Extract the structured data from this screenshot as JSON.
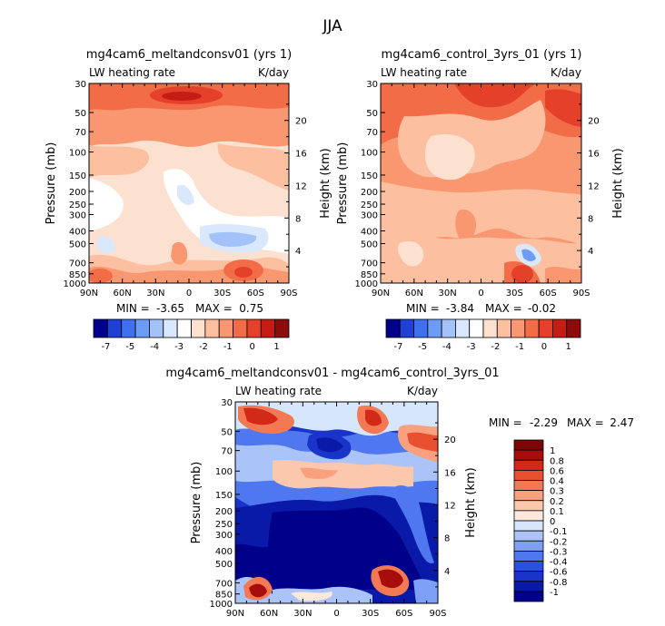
{
  "figure_title": "JJA",
  "colors": {
    "panel_scale": [
      "#00008a",
      "#1f3fd6",
      "#3f70f0",
      "#6d9cf7",
      "#a3c2fa",
      "#d9e8fc",
      "#ffffff",
      "#fde1d0",
      "#fcbfa0",
      "#f99770",
      "#f26c48",
      "#e5402a",
      "#c51d15",
      "#8c0b0b"
    ],
    "diff_scale": [
      "#00008a",
      "#0a1aa8",
      "#1a33c8",
      "#2b4fe0",
      "#4f78f0",
      "#7da0f6",
      "#aac4fa",
      "#d6e6fd",
      "#fde9dc",
      "#fcc8ad",
      "#f9a07e",
      "#f27954",
      "#e9502f",
      "#d32a18",
      "#a80d0d",
      "#7a0606"
    ]
  },
  "chart_data": [
    {
      "type": "heatmap",
      "title": "mg4cam6_meltandconsv01 (yrs 1)",
      "subtitle_left": "LW heating rate",
      "subtitle_right": "K/day",
      "ylabel": "Pressure (mb)",
      "ylabel_right": "Height (km)",
      "x_ticks": [
        "90N",
        "60N",
        "30N",
        "0",
        "30S",
        "60S",
        "90S"
      ],
      "y_ticks": [
        "30",
        "50",
        "70",
        "100",
        "150",
        "200",
        "250",
        "300",
        "400",
        "500",
        "700",
        "850",
        "1000"
      ],
      "height_ticks": [
        "20",
        "16",
        "12",
        "8",
        "4"
      ],
      "min_label": "MIN =",
      "min_value": "-3.65",
      "max_label": "MAX =",
      "max_value": "0.75",
      "colorbar_labels": [
        "-7",
        "-5",
        "-4",
        "-3",
        "-2",
        "-1",
        "0",
        "1"
      ]
    },
    {
      "type": "heatmap",
      "title": "mg4cam6_control_3yrs_01 (yrs 1)",
      "subtitle_left": "LW heating rate",
      "subtitle_right": "K/day",
      "ylabel": "Pressure (mb)",
      "ylabel_right": "Height (km)",
      "x_ticks": [
        "90N",
        "60N",
        "30N",
        "0",
        "30S",
        "60S",
        "90S"
      ],
      "y_ticks": [
        "30",
        "50",
        "70",
        "100",
        "150",
        "200",
        "250",
        "300",
        "400",
        "500",
        "700",
        "850",
        "1000"
      ],
      "height_ticks": [
        "20",
        "16",
        "12",
        "8",
        "4"
      ],
      "min_label": "MIN =",
      "min_value": "-3.84",
      "max_label": "MAX =",
      "max_value": "-0.02",
      "colorbar_labels": [
        "-7",
        "-5",
        "-4",
        "-3",
        "-2",
        "-1",
        "0",
        "1"
      ]
    },
    {
      "type": "heatmap",
      "title": "mg4cam6_meltandconsv01 - mg4cam6_control_3yrs_01",
      "subtitle_left": "LW heating rate",
      "subtitle_right": "K/day",
      "ylabel": "Pressure (mb)",
      "ylabel_right": "Height (km)",
      "x_ticks": [
        "90N",
        "60N",
        "30N",
        "0",
        "30S",
        "60S",
        "90S"
      ],
      "y_ticks": [
        "30",
        "50",
        "70",
        "100",
        "150",
        "200",
        "250",
        "300",
        "400",
        "500",
        "700",
        "850",
        "1000"
      ],
      "height_ticks": [
        "20",
        "16",
        "12",
        "8",
        "4"
      ],
      "min_label": "MIN =",
      "min_value": "-2.29",
      "max_label": "MAX =",
      "max_value": "2.47",
      "colorbar_labels": [
        "1",
        "0.8",
        "0.6",
        "0.4",
        "0.3",
        "0.2",
        "0.1",
        "0",
        "-0.1",
        "-0.2",
        "-0.3",
        "-0.4",
        "-0.6",
        "-0.8",
        "-1"
      ]
    }
  ]
}
